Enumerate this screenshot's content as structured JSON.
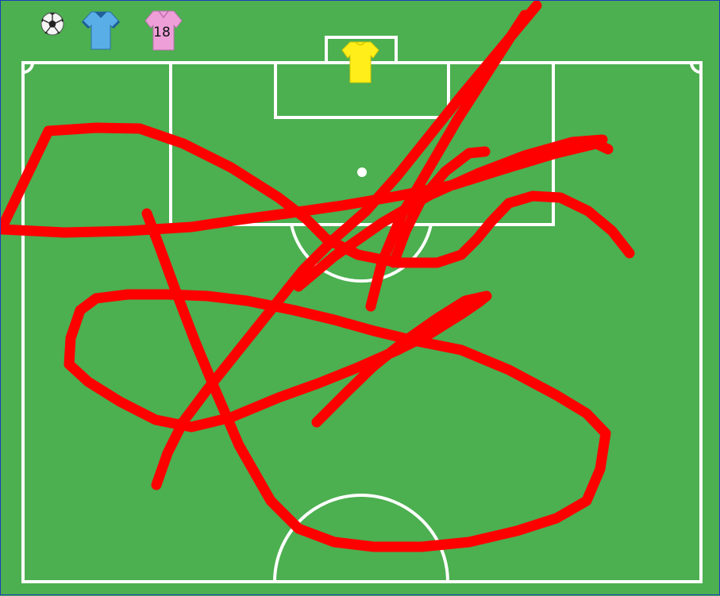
{
  "toolbar": {
    "items": [
      {
        "name": "ball-token",
        "icon": "soccer-ball-icon"
      },
      {
        "name": "blue-player-token",
        "icon": "blue-shirt-icon",
        "color": "#5aaee8"
      },
      {
        "name": "pink-player-token",
        "icon": "pink-shirt-icon",
        "color": "#ee9fd8",
        "number": "18"
      }
    ]
  },
  "pitch": {
    "grass_color": "#4caf50",
    "line_color": "#ffffff",
    "goalkeeper": {
      "icon": "yellow-shirt-icon",
      "color": "#ffee1a"
    }
  },
  "drawing": {
    "stroke_color": "#ff0000"
  }
}
